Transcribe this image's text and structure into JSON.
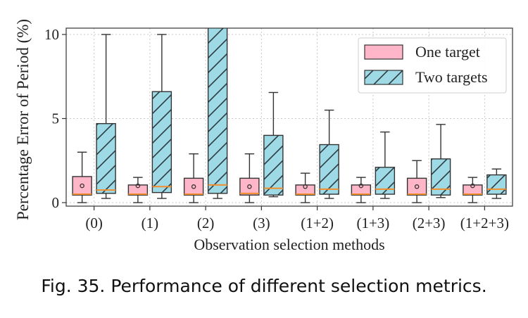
{
  "chart_data": {
    "type": "box",
    "categories": [
      "(0)",
      "(1)",
      "(2)",
      "(3)",
      "(1+2)",
      "(1+3)",
      "(2+3)",
      "(1+2+3)"
    ],
    "xlabel": "Observation selection methods",
    "ylabel": "Percentage Error of Period (%)",
    "ylim": [
      -0.2,
      10.2
    ],
    "yticks": [
      0,
      5,
      10
    ],
    "grid": true,
    "legend_position": "top-right",
    "series": [
      {
        "name": "One target",
        "color": "#ffb6c8",
        "hatch": "none",
        "boxes": [
          {
            "whislo": 0.0,
            "q1": 0.45,
            "med": 0.5,
            "q3": 1.55,
            "whishi": 3.0,
            "mean": 1.0
          },
          {
            "whislo": 0.0,
            "q1": 0.45,
            "med": 0.5,
            "q3": 1.05,
            "whishi": 1.5,
            "mean": 1.0
          },
          {
            "whislo": 0.0,
            "q1": 0.45,
            "med": 0.5,
            "q3": 1.45,
            "whishi": 2.9,
            "mean": 0.95
          },
          {
            "whislo": 0.0,
            "q1": 0.45,
            "med": 0.55,
            "q3": 1.45,
            "whishi": 2.9,
            "mean": 0.95
          },
          {
            "whislo": 0.0,
            "q1": 0.45,
            "med": 0.5,
            "q3": 1.05,
            "whishi": 1.75,
            "mean": 0.95
          },
          {
            "whislo": 0.0,
            "q1": 0.45,
            "med": 0.5,
            "q3": 1.05,
            "whishi": 1.5,
            "mean": 1.0
          },
          {
            "whislo": 0.0,
            "q1": 0.45,
            "med": 0.5,
            "q3": 1.45,
            "whishi": 2.5,
            "mean": 0.95
          },
          {
            "whislo": 0.0,
            "q1": 0.45,
            "med": 0.5,
            "q3": 1.05,
            "whishi": 1.5,
            "mean": 1.0
          }
        ]
      },
      {
        "name": "Two targets",
        "color": "#9ed9e6",
        "hatch": "diagonal",
        "boxes": [
          {
            "whislo": 0.25,
            "q1": 0.55,
            "med": 0.75,
            "q3": 4.7,
            "whishi": 10.0
          },
          {
            "whislo": 0.25,
            "q1": 0.6,
            "med": 0.95,
            "q3": 6.6,
            "whishi": 10.0
          },
          {
            "whislo": 0.25,
            "q1": 0.55,
            "med": 1.05,
            "q3": 10.5,
            "whishi": 12.0
          },
          {
            "whislo": 0.35,
            "q1": 0.45,
            "med": 0.85,
            "q3": 4.0,
            "whishi": 6.55
          },
          {
            "whislo": 0.25,
            "q1": 0.5,
            "med": 0.8,
            "q3": 3.45,
            "whishi": 5.5
          },
          {
            "whislo": 0.25,
            "q1": 0.5,
            "med": 0.8,
            "q3": 2.1,
            "whishi": 4.2
          },
          {
            "whislo": 0.3,
            "q1": 0.45,
            "med": 0.8,
            "q3": 2.6,
            "whishi": 4.65
          },
          {
            "whislo": 0.25,
            "q1": 0.5,
            "med": 0.8,
            "q3": 1.65,
            "whishi": 2.0
          }
        ]
      }
    ]
  },
  "caption": "Fig. 35.  Performance of different selection metrics."
}
